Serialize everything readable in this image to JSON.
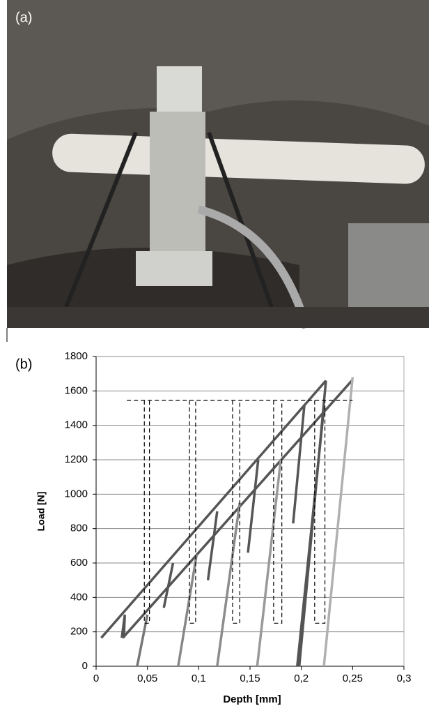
{
  "photo": {
    "label": "(a)"
  },
  "chart_data": {
    "type": "line",
    "panel_label": "(b)",
    "x_label": "Depth [mm]",
    "y_label": "Load [N]",
    "xlim": [
      0,
      0.3
    ],
    "ylim": [
      0,
      1800
    ],
    "xticks": [
      0,
      {
        "value": 0.05,
        "label": "0,05"
      },
      {
        "value": 0.1,
        "label": "0,1"
      },
      {
        "value": 0.15,
        "label": "0,15"
      },
      {
        "value": 0.2,
        "label": "0,2"
      },
      {
        "value": 0.25,
        "label": "0,25"
      },
      {
        "value": 0.3,
        "label": "0,3"
      }
    ],
    "yticks": [
      0,
      200,
      400,
      600,
      800,
      1000,
      1200,
      1400,
      1600,
      1800
    ],
    "grid": true,
    "series": [
      {
        "color": "#555555",
        "x": [
          0.005,
          0.224
        ],
        "values": [
          165,
          1660
        ]
      },
      {
        "color": "#555555",
        "x": [
          0.026,
          0.25
        ],
        "values": [
          165,
          1665
        ]
      },
      {
        "color": "#555555",
        "x": [
          0.025,
          0.028,
          0.027
        ],
        "values": [
          165,
          300,
          165
        ]
      },
      {
        "color": "#555555",
        "x": [
          0.066,
          0.075
        ],
        "values": [
          340,
          600
        ]
      },
      {
        "color": "#555555",
        "x": [
          0.109,
          0.118
        ],
        "values": [
          500,
          900
        ]
      },
      {
        "color": "#555555",
        "x": [
          0.148,
          0.158
        ],
        "values": [
          660,
          1200
        ]
      },
      {
        "color": "#555555",
        "x": [
          0.192,
          0.203
        ],
        "values": [
          830,
          1520
        ]
      },
      {
        "color": "#555555",
        "x": [
          0.224,
          0.198
        ],
        "values": [
          1660,
          0
        ]
      },
      {
        "color": "#777777",
        "x": [
          0.04,
          0.05
        ],
        "values": [
          0,
          300
        ]
      },
      {
        "color": "#888888",
        "x": [
          0.08,
          0.098
        ],
        "values": [
          0,
          650
        ]
      },
      {
        "color": "#8c8c8c",
        "x": [
          0.118,
          0.14
        ],
        "values": [
          0,
          950
        ]
      },
      {
        "color": "#999999",
        "x": [
          0.157,
          0.18
        ],
        "values": [
          0,
          1200
        ]
      },
      {
        "color": "#555555",
        "x": [
          0.196,
          0.222
        ],
        "values": [
          0,
          1500
        ]
      },
      {
        "color": "#b0b0b0",
        "x": [
          0.222,
          0.25
        ],
        "values": [
          0,
          1680
        ]
      },
      {
        "color": "#000000",
        "dashed": true,
        "x": [
          0.03,
          0.25
        ],
        "values": [
          1545,
          1545
        ]
      },
      {
        "color": "#000000",
        "dashed": true,
        "x": [
          0.047,
          0.047,
          0.052,
          0.052
        ],
        "values": [
          1545,
          250,
          250,
          1545
        ]
      },
      {
        "color": "#000000",
        "dashed": true,
        "x": [
          0.091,
          0.091,
          0.097,
          0.097
        ],
        "values": [
          1545,
          250,
          250,
          1545
        ]
      },
      {
        "color": "#000000",
        "dashed": true,
        "x": [
          0.133,
          0.133,
          0.14,
          0.14
        ],
        "values": [
          1545,
          250,
          250,
          1545
        ]
      },
      {
        "color": "#000000",
        "dashed": true,
        "x": [
          0.173,
          0.173,
          0.181,
          0.181
        ],
        "values": [
          1545,
          250,
          250,
          1545
        ]
      },
      {
        "color": "#000000",
        "dashed": true,
        "x": [
          0.213,
          0.213,
          0.223,
          0.223
        ],
        "values": [
          1545,
          250,
          250,
          1545
        ]
      }
    ]
  }
}
